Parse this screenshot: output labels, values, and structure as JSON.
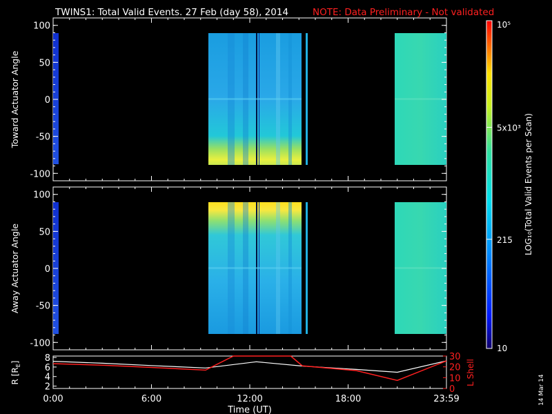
{
  "header": {
    "title": "TWINS1: Total Valid Events. 27 Feb (day  58), 2014",
    "note": "NOTE: Data Preliminary - Not validated"
  },
  "colors": {
    "background": "#000000",
    "note": "#ff2020",
    "r_line": "#ffffff",
    "lshell_line": "#ff2020"
  },
  "colorbar": {
    "scale": "log",
    "min": 10,
    "max": 100000,
    "ticks": [
      {
        "label": "10",
        "value": 10
      },
      {
        "label": "215",
        "value": 215
      },
      {
        "label": "5x10³",
        "value": 5000
      },
      {
        "label": "10⁵",
        "value": 100000
      }
    ],
    "label": "LOG₁₀(Total Valid Events per Scan)"
  },
  "chart_data": [
    {
      "type": "heatmap",
      "name": "toward",
      "ylabel": "Toward Actuator Angle",
      "ylim": [
        -110,
        110
      ],
      "yticks": [
        "100",
        "50",
        "0",
        "-50",
        "-100"
      ],
      "y_data_range": [
        -88,
        90
      ],
      "xlim_hours": [
        0,
        24
      ],
      "segments": [
        {
          "start": "00:00",
          "end": "00:24",
          "level": "low"
        },
        {
          "start": "09:28",
          "end": "15:27",
          "level": "medium, higher near -80"
        },
        {
          "start": "15:32",
          "end": "15:40",
          "level": "medium"
        },
        {
          "start": "21:00",
          "end": "24:00",
          "level": "medium-high"
        }
      ]
    },
    {
      "type": "heatmap",
      "name": "away",
      "ylabel": "Away Actuator Angle",
      "ylim": [
        -110,
        110
      ],
      "yticks": [
        "100",
        "50",
        "0",
        "-50",
        "-100"
      ],
      "y_data_range": [
        -88,
        90
      ],
      "xlim_hours": [
        0,
        24
      ],
      "segments": [
        {
          "start": "00:00",
          "end": "00:24",
          "level": "low"
        },
        {
          "start": "09:28",
          "end": "15:27",
          "level": "medium, higher near +85"
        },
        {
          "start": "15:32",
          "end": "15:40",
          "level": "medium"
        },
        {
          "start": "21:00",
          "end": "24:00",
          "level": "medium-high"
        }
      ]
    },
    {
      "type": "line",
      "name": "orbit",
      "ylabel_left": "R [R",
      "ylabel_left_sub": "E",
      "ylabel_left_end": "]",
      "ylabel_right": "L Shell",
      "yticks_left": [
        "8",
        "6",
        "4",
        "2"
      ],
      "ylim_left": [
        1.5,
        8.3
      ],
      "yticks_right": [
        "30",
        "20",
        "10",
        "0"
      ],
      "ylim_right": [
        0,
        30
      ],
      "xlabel": "Time (UT)",
      "xticks": [
        "0:00",
        "6:00",
        "12:00",
        "18:00",
        "23:59"
      ],
      "xtick_hours": [
        0,
        6,
        12,
        18,
        24
      ],
      "series": [
        {
          "axis": "left",
          "x_hours": [
            0,
            3,
            6,
            9.3,
            12.4,
            15.2,
            18.5,
            21,
            24
          ],
          "values": [
            7.2,
            6.8,
            6.3,
            5.8,
            7.1,
            6.2,
            5.5,
            4.9,
            7.3
          ]
        },
        {
          "axis": "right",
          "x_hours": [
            0,
            3,
            6,
            9.3,
            11,
            14.5,
            15.2,
            18.5,
            21,
            24
          ],
          "values": [
            23,
            21.5,
            19.5,
            17,
            33,
            33,
            21,
            16.5,
            7.5,
            25.5
          ]
        }
      ]
    }
  ],
  "footer": {
    "date_stamp": "14 Mar 14"
  }
}
